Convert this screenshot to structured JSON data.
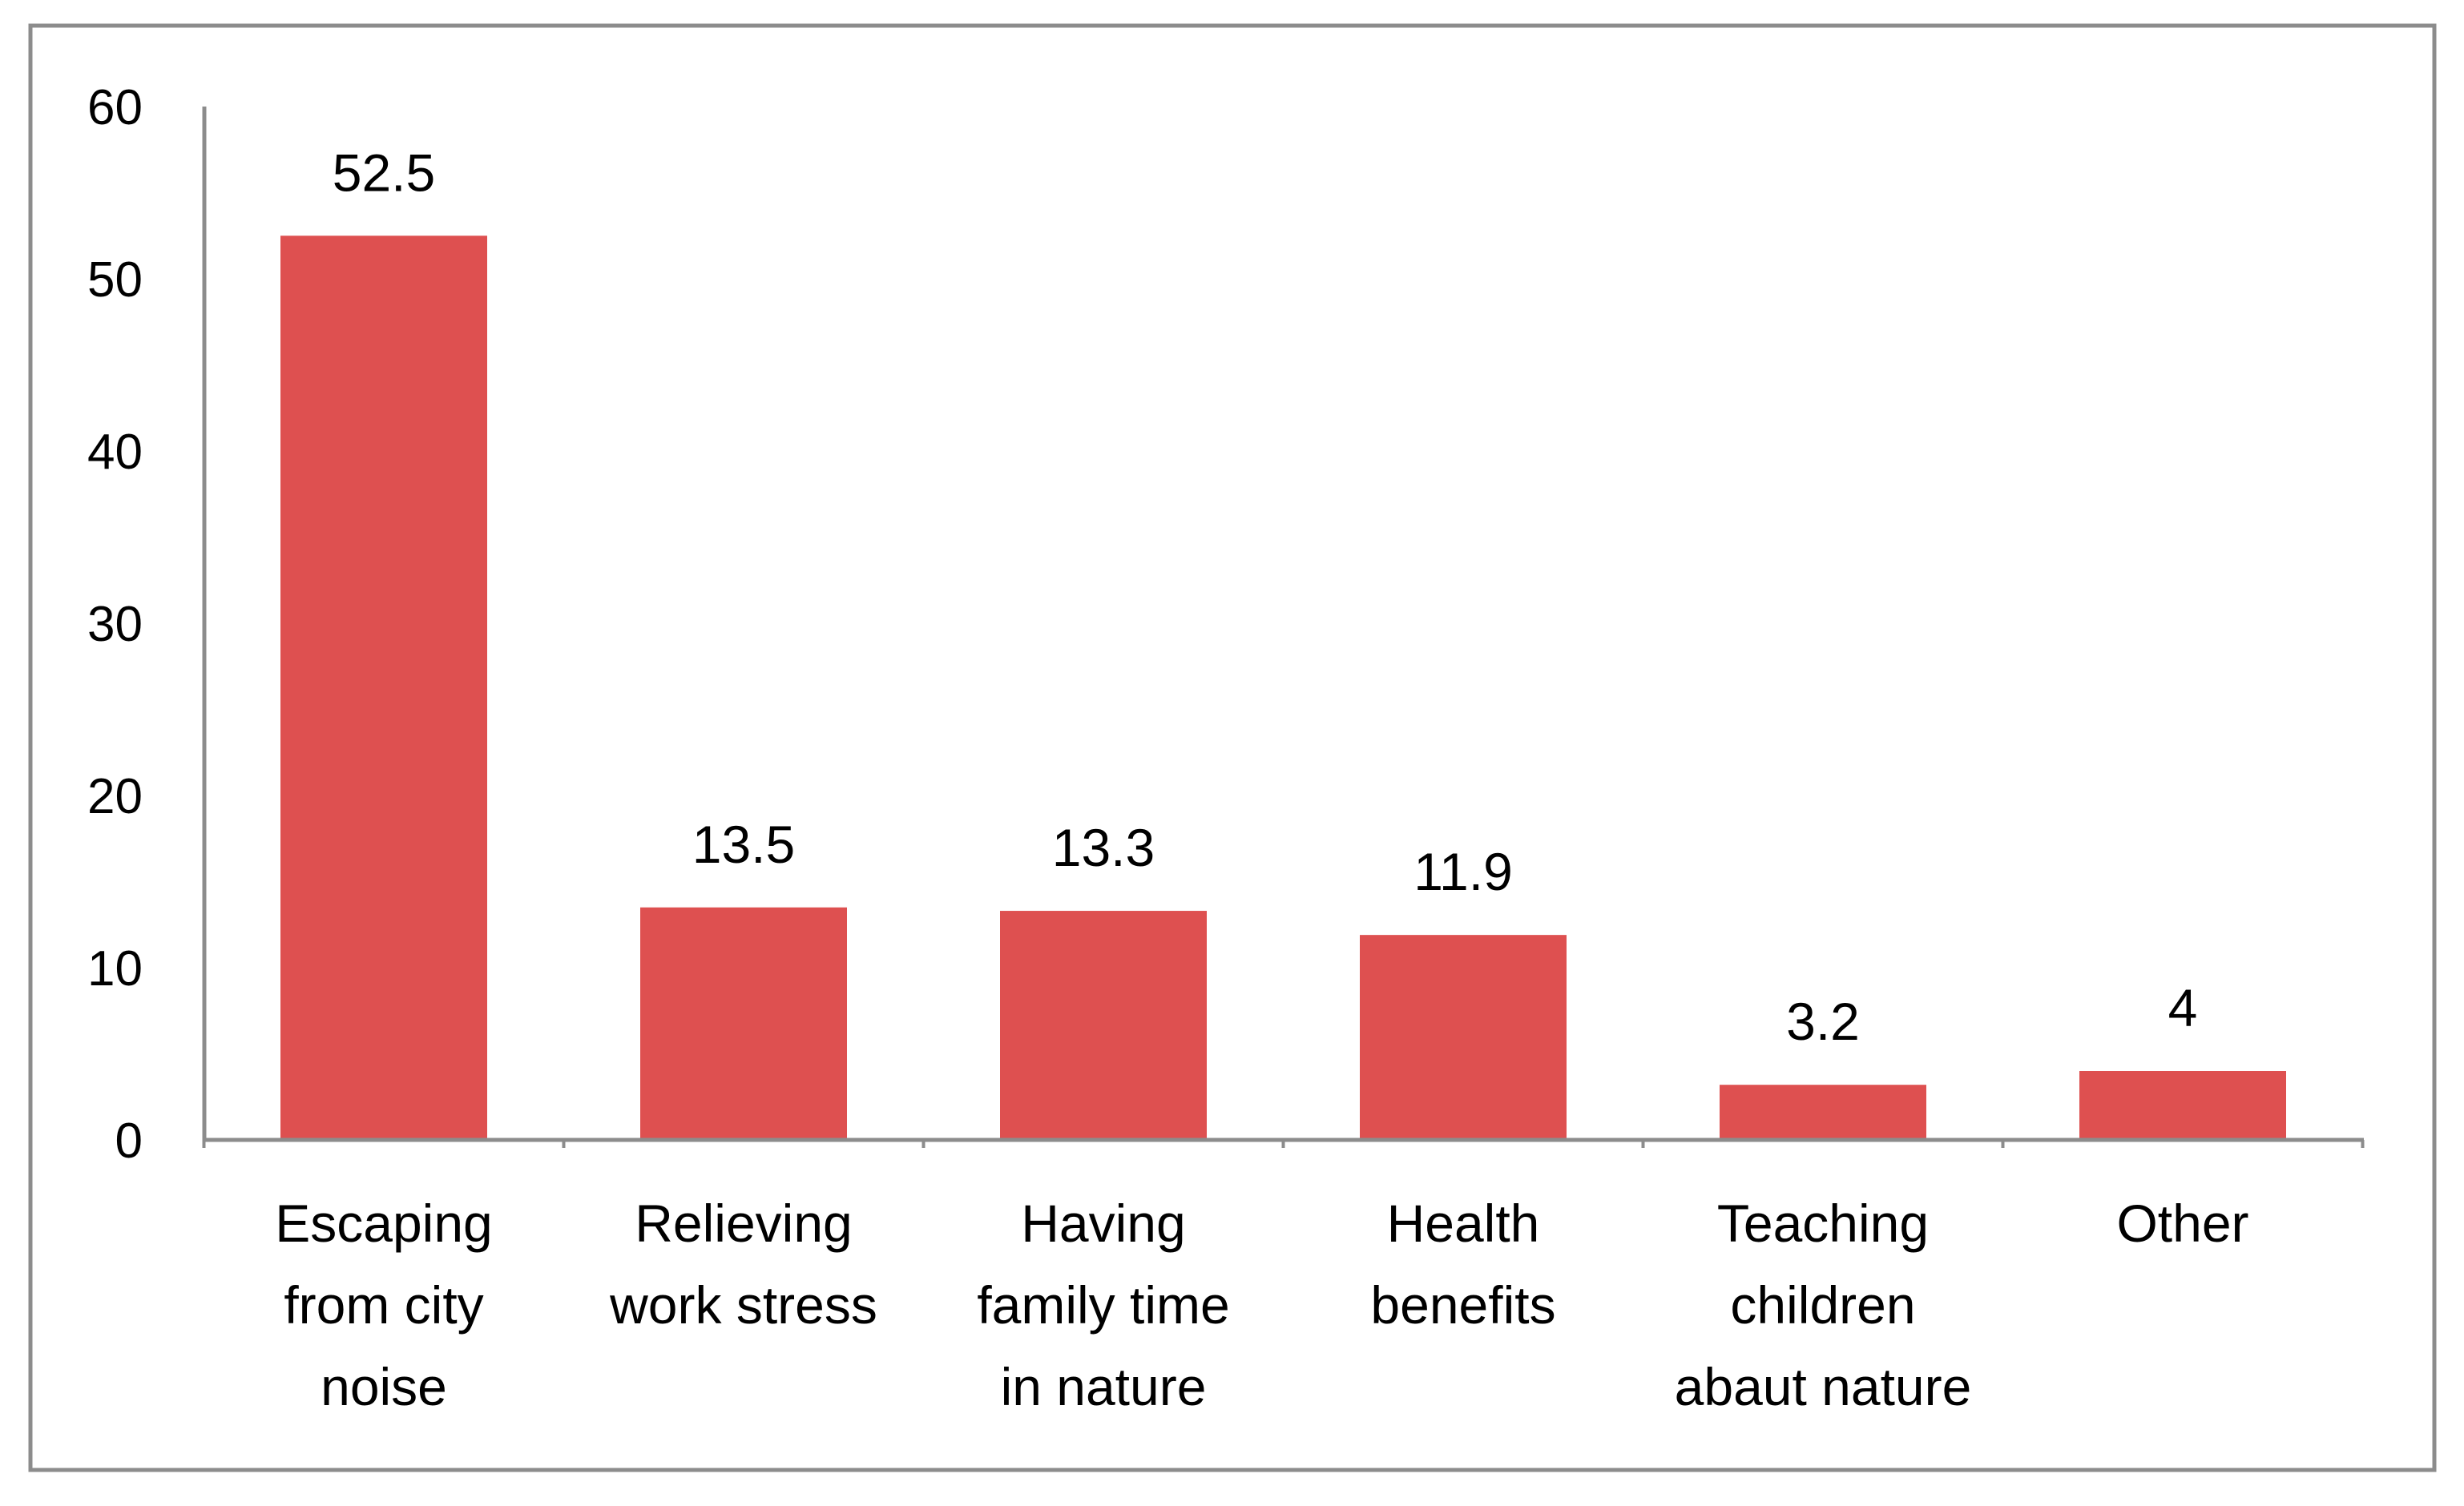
{
  "chart_data": {
    "type": "bar",
    "title": "",
    "xlabel": "",
    "ylabel": "",
    "categories": [
      [
        "Escaping",
        "from city",
        "noise"
      ],
      [
        "Relieving",
        "work stress"
      ],
      [
        "Having",
        "family time",
        "in nature"
      ],
      [
        "Health",
        "benefits"
      ],
      [
        "Teaching",
        "children",
        "abaut nature"
      ],
      [
        "Other"
      ]
    ],
    "values": [
      52.5,
      13.5,
      13.3,
      11.9,
      3.2,
      4
    ],
    "value_labels": [
      "52.5",
      "13.5",
      "13.3",
      "11.9",
      "3.2",
      "4"
    ],
    "ylim": [
      0,
      60
    ],
    "yticks": [
      0,
      10,
      20,
      30,
      40,
      50,
      60
    ],
    "ytick_labels": [
      "0",
      "10",
      "20",
      "30",
      "40",
      "50",
      "60"
    ],
    "grid": false,
    "legend": "none",
    "bar_color": "#de5050",
    "axis_color": "#8c8c8c",
    "border_color": "#8c8c8c"
  }
}
